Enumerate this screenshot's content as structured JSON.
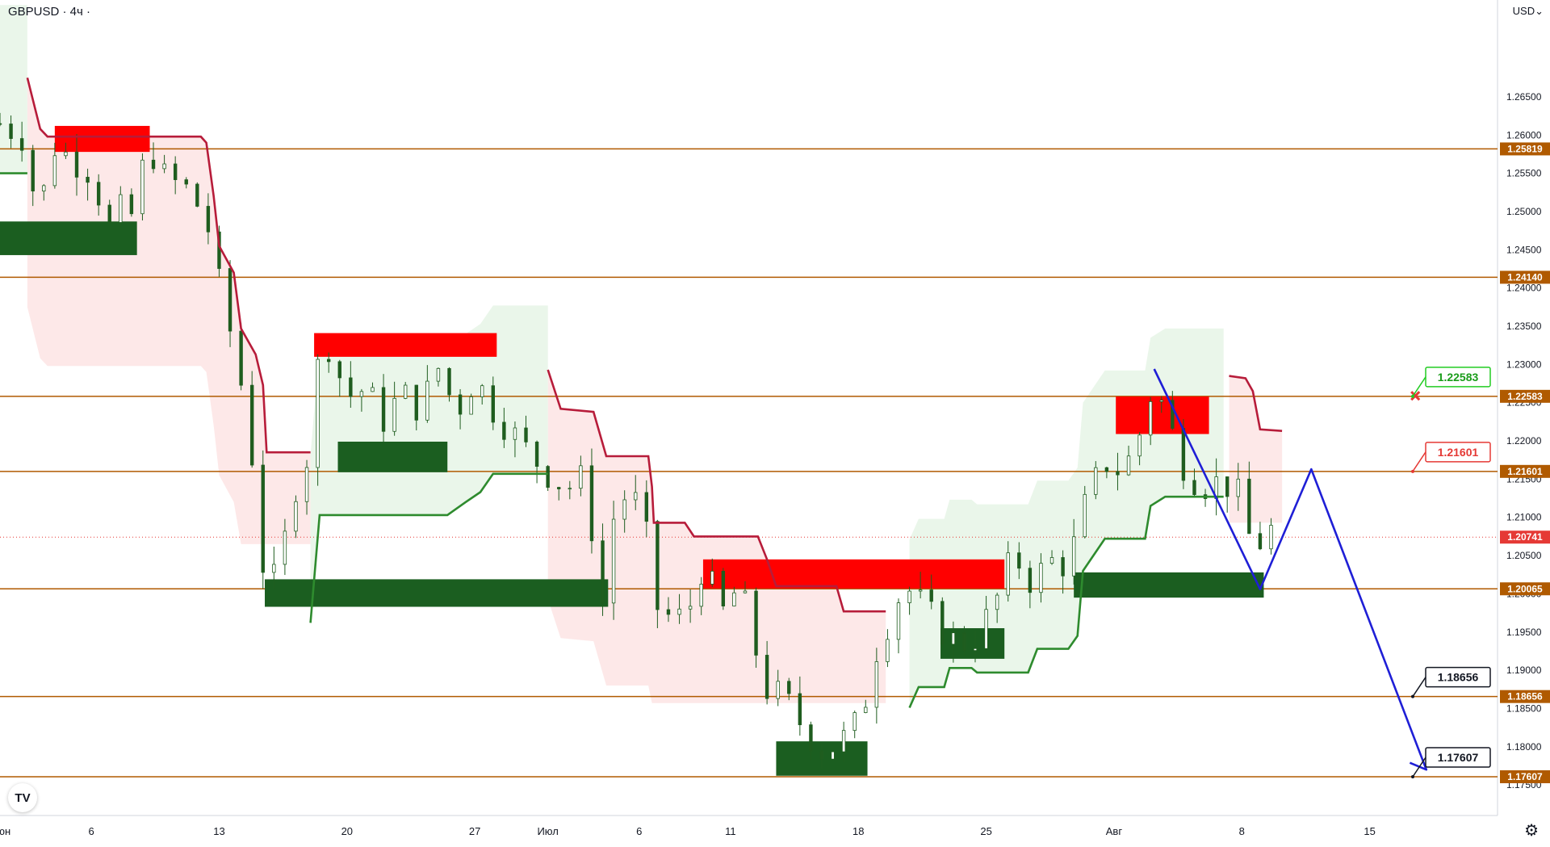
{
  "header": {
    "symbol": "GBPUSD · 4ч ·",
    "currency": "USD⌄"
  },
  "colors": {
    "level_line": "#b05a00",
    "level_tag_bg": "#b05a00",
    "price_tag_bg": "#e53935",
    "supply_zone": "#ff0000",
    "demand_zone": "#1b5e20",
    "trail_red": "#b71c3a",
    "trail_green": "#2e8b2e",
    "fill_red": "#fde4e4",
    "fill_green": "#e6f4e6",
    "projection": "#1f1fd6",
    "candle": "#1f5d1f",
    "axis_text": "#131722"
  },
  "chart_data": {
    "type": "candlestick",
    "title": "GBPUSD · 4ч",
    "ylim": [
      1.171,
      1.2745
    ],
    "ylabel": "USD",
    "price_ticks": [
      1.175,
      1.18,
      1.185,
      1.19,
      1.195,
      1.2,
      1.205,
      1.21,
      1.215,
      1.22,
      1.225,
      1.23,
      1.235,
      1.24,
      1.245,
      1.25,
      1.255,
      1.26,
      1.265
    ],
    "price_tick_labels": [
      "1.17500",
      "1.18000",
      "1.18500",
      "1.19000",
      "1.19500",
      "1.20000",
      "1.20500",
      "1.21000",
      "1.21500",
      "1.22000",
      "1.22500",
      "1.23000",
      "1.23500",
      "1.24000",
      "1.24500",
      "1.25000",
      "1.25500",
      "1.26000",
      "1.26500"
    ],
    "time_labels": [
      "Июн",
      "6",
      "13",
      "20",
      "27",
      "Июл",
      "6",
      "11",
      "18",
      "25",
      "Авг",
      "8",
      "15"
    ],
    "time_label_days": [
      0,
      5,
      12,
      19,
      26,
      30,
      35,
      40,
      47,
      54,
      61,
      68,
      75
    ],
    "xlim_days": [
      0,
      82
    ],
    "levels": [
      {
        "value": 1.25819,
        "label": "1.25819"
      },
      {
        "value": 1.2414,
        "label": "1.24140"
      },
      {
        "value": 1.22583,
        "label": "1.22583"
      },
      {
        "value": 1.21601,
        "label": "1.21601"
      },
      {
        "value": 1.20065,
        "label": "1.20065"
      },
      {
        "value": 1.18656,
        "label": "1.18656"
      },
      {
        "value": 1.17607,
        "label": "1.17607"
      }
    ],
    "current_price": {
      "value": 1.20741,
      "label": "1.20741"
    },
    "callouts": [
      {
        "value": 1.22583,
        "label": "1.22583",
        "style": "green"
      },
      {
        "value": 1.21601,
        "label": "1.21601",
        "style": "red"
      },
      {
        "value": 1.18656,
        "label": "1.18656",
        "style": "black"
      },
      {
        "value": 1.17607,
        "label": "1.17607",
        "style": "black"
      }
    ],
    "cross_marker": {
      "day": 77.5,
      "value": 1.2259
    },
    "supply_zones": [
      {
        "d1": 3,
        "d2": 8.2,
        "top": 1.2612,
        "bottom": 1.2578
      },
      {
        "d1": 17.2,
        "d2": 27.2,
        "top": 1.2341,
        "bottom": 1.231
      },
      {
        "d1": 38.5,
        "d2": 55,
        "top": 1.2045,
        "bottom": 1.2007
      },
      {
        "d1": 61.1,
        "d2": 66.2,
        "top": 1.2258,
        "bottom": 1.2209
      }
    ],
    "demand_zones": [
      {
        "d1": 0,
        "d2": 7.5,
        "top": 1.2487,
        "bottom": 1.2443
      },
      {
        "d1": 18.5,
        "d2": 24.5,
        "top": 1.2199,
        "bottom": 1.2159
      },
      {
        "d1": 14.5,
        "d2": 33.3,
        "top": 1.2019,
        "bottom": 1.1983
      },
      {
        "d1": 51.5,
        "d2": 55,
        "top": 1.1955,
        "bottom": 1.1915
      },
      {
        "d1": 42.5,
        "d2": 47.5,
        "top": 1.1807,
        "bottom": 1.1762
      },
      {
        "d1": 58.8,
        "d2": 69.2,
        "top": 1.2028,
        "bottom": 1.1995
      }
    ],
    "trail_red": [
      [
        [
          1.5,
          1.2675
        ],
        [
          2.2,
          1.2608
        ],
        [
          2.6,
          1.2598
        ],
        [
          11,
          1.2598
        ],
        [
          11.3,
          1.259
        ],
        [
          11.7,
          1.252
        ],
        [
          12,
          1.2455
        ],
        [
          12.8,
          1.242
        ],
        [
          13.2,
          1.2347
        ],
        [
          14,
          1.2313
        ],
        [
          14.4,
          1.2273
        ],
        [
          14.6,
          1.2185
        ],
        [
          17,
          1.2185
        ]
      ],
      [
        [
          30,
          1.2293
        ],
        [
          30.7,
          1.2242
        ],
        [
          32.5,
          1.2238
        ],
        [
          33.2,
          1.218
        ],
        [
          35.5,
          1.218
        ],
        [
          35.7,
          1.214
        ],
        [
          35.8,
          1.2093
        ],
        [
          37.5,
          1.2093
        ],
        [
          38,
          1.2075
        ],
        [
          41.5,
          1.2075
        ],
        [
          42,
          1.2045
        ],
        [
          42.5,
          1.201
        ],
        [
          45.8,
          1.201
        ],
        [
          46.2,
          1.1977
        ],
        [
          48.5,
          1.1977
        ]
      ],
      [
        [
          67.3,
          1.2285
        ],
        [
          68.2,
          1.2282
        ],
        [
          68.6,
          1.2265
        ],
        [
          69,
          1.2215
        ],
        [
          70.2,
          1.2213
        ]
      ]
    ],
    "trail_green": [
      [
        [
          0,
          1.255
        ],
        [
          1.5,
          1.255
        ]
      ],
      [
        [
          17,
          1.1962
        ],
        [
          17.5,
          1.2103
        ],
        [
          24.5,
          1.2103
        ],
        [
          25.5,
          1.212
        ],
        [
          26.3,
          1.2133
        ],
        [
          27,
          1.2157
        ],
        [
          30,
          1.2157
        ]
      ],
      [
        [
          49.8,
          1.1851
        ],
        [
          50.3,
          1.1878
        ],
        [
          51.7,
          1.1878
        ],
        [
          52,
          1.1903
        ],
        [
          53.2,
          1.1903
        ],
        [
          53.5,
          1.1897
        ],
        [
          56.3,
          1.1897
        ],
        [
          56.8,
          1.1928
        ],
        [
          58.5,
          1.1928
        ],
        [
          59,
          1.1945
        ],
        [
          59.3,
          1.203
        ],
        [
          60.5,
          1.2072
        ],
        [
          62.7,
          1.2072
        ],
        [
          63,
          1.2115
        ],
        [
          63.8,
          1.2127
        ],
        [
          67,
          1.2127
        ]
      ]
    ],
    "projection_path": [
      [
        63.2,
        1.2294
      ],
      [
        69,
        1.2006
      ],
      [
        71.8,
        1.2163
      ],
      [
        78.1,
        1.177
      ],
      [
        77.2,
        1.1779
      ]
    ],
    "candle_anchors": [
      [
        0,
        1.2615
      ],
      [
        1.5,
        1.2595
      ],
      [
        2,
        1.2488
      ],
      [
        3,
        1.2585
      ],
      [
        5,
        1.2552
      ],
      [
        6,
        1.2478
      ],
      [
        7,
        1.2515
      ],
      [
        7.4,
        1.2475
      ],
      [
        8,
        1.2595
      ],
      [
        9,
        1.2545
      ],
      [
        10.5,
        1.2525
      ],
      [
        11.5,
        1.2472
      ],
      [
        12,
        1.2405
      ],
      [
        13,
        1.2303
      ],
      [
        13.5,
        1.2233
      ],
      [
        14,
        1.2145
      ],
      [
        14.6,
        1.1985
      ],
      [
        15.5,
        1.2058
      ],
      [
        16,
        1.2122
      ],
      [
        16.5,
        1.2172
      ],
      [
        17,
        1.2182
      ],
      [
        17.6,
        1.2353
      ],
      [
        19,
        1.2258
      ],
      [
        20,
        1.2268
      ],
      [
        21,
        1.2228
      ],
      [
        22,
        1.2262
      ],
      [
        23,
        1.2242
      ],
      [
        24,
        1.2295
      ],
      [
        25,
        1.2238
      ],
      [
        26,
        1.2283
      ],
      [
        27,
        1.2242
      ],
      [
        28,
        1.2212
      ],
      [
        29,
        1.2183
      ],
      [
        30,
        1.2158
      ],
      [
        31,
        1.2138
      ],
      [
        32,
        1.2152
      ],
      [
        33,
        1.1988
      ],
      [
        33.7,
        1.2118
      ],
      [
        34.5,
        1.2132
      ],
      [
        35.2,
        1.2103
      ],
      [
        36,
        1.1982
      ],
      [
        37,
        1.1963
      ],
      [
        38,
        1.1992
      ],
      [
        38.5,
        1.2043
      ],
      [
        39.5,
        1.1972
      ],
      [
        40.5,
        1.2012
      ],
      [
        41.5,
        1.1915
      ],
      [
        42,
        1.1875
      ],
      [
        43,
        1.1862
      ],
      [
        44,
        1.1825
      ],
      [
        45,
        1.1795
      ],
      [
        46,
        1.1805
      ],
      [
        47,
        1.1832
      ],
      [
        47.5,
        1.1872
      ],
      [
        48,
        1.1928
      ],
      [
        49.5,
        1.2012
      ],
      [
        50.5,
        1.1985
      ],
      [
        51.5,
        1.1955
      ],
      [
        52.5,
        1.1932
      ],
      [
        53.5,
        1.1945
      ],
      [
        54.5,
        1.1988
      ],
      [
        55.5,
        1.2052
      ],
      [
        56.5,
        1.2015
      ],
      [
        57.5,
        1.2043
      ],
      [
        58.5,
        1.2038
      ],
      [
        59.5,
        1.2122
      ],
      [
        60.5,
        1.2173
      ],
      [
        61.5,
        1.2158
      ],
      [
        62.5,
        1.2215
      ],
      [
        63.2,
        1.2278
      ],
      [
        64,
        1.2222
      ],
      [
        65,
        1.2158
      ],
      [
        66,
        1.2143
      ],
      [
        67,
        1.2147
      ],
      [
        68,
        1.2123
      ],
      [
        68.6,
        1.2052
      ],
      [
        69.2,
        1.2075
      ],
      [
        69.7,
        1.2086
      ]
    ]
  }
}
